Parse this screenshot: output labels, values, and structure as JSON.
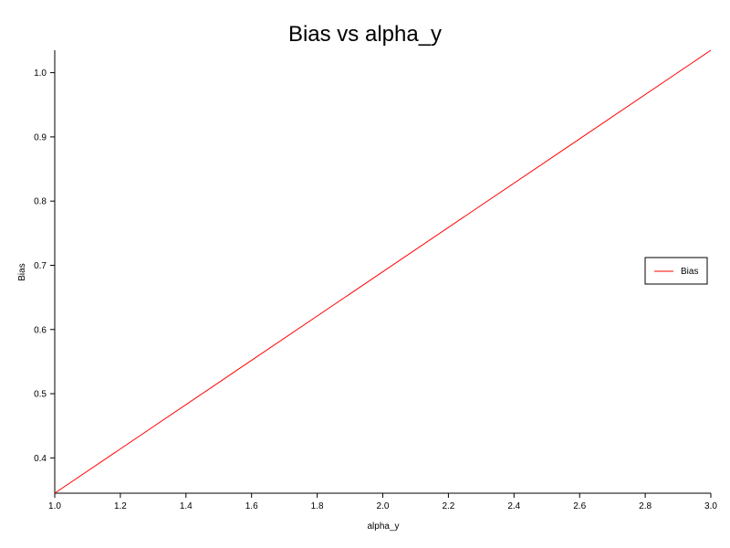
{
  "chart_data": {
    "type": "line",
    "title": "Bias vs alpha_y",
    "xlabel": "alpha_y",
    "ylabel": "Bias",
    "xlim": [
      1.0,
      3.0
    ],
    "ylim": [
      0.345,
      1.035
    ],
    "x_ticks": [
      1.0,
      1.2,
      1.4,
      1.6,
      1.8,
      2.0,
      2.2,
      2.4,
      2.6,
      2.8,
      3.0
    ],
    "y_ticks": [
      0.4,
      0.5,
      0.6,
      0.7,
      0.8,
      0.9,
      1.0
    ],
    "x_tick_labels": [
      "1.0",
      "1.2",
      "1.4",
      "1.6",
      "1.8",
      "2.0",
      "2.2",
      "2.4",
      "2.6",
      "2.8",
      "3.0"
    ],
    "y_tick_labels": [
      "0.4",
      "0.5",
      "0.6",
      "0.7",
      "0.8",
      "0.9",
      "1.0"
    ],
    "grid": false,
    "legend_position": "right",
    "series": [
      {
        "name": "Bias",
        "color": "#ff0000",
        "x": [
          1.0,
          3.0
        ],
        "y": [
          0.345,
          1.035
        ]
      }
    ]
  }
}
